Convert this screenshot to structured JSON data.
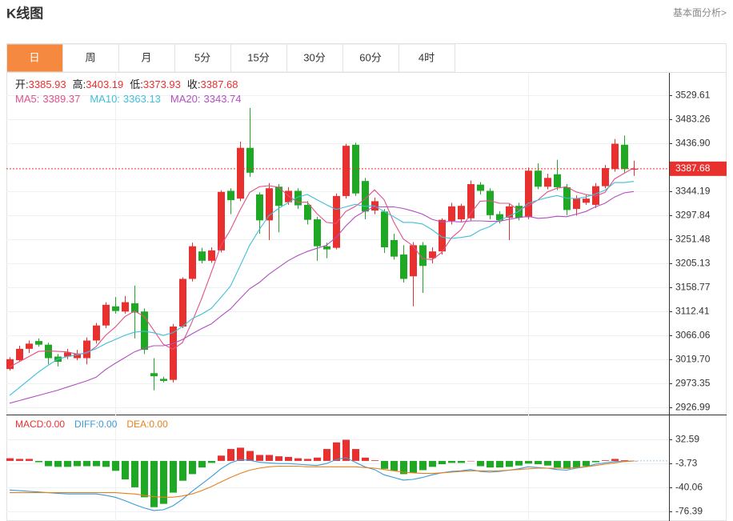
{
  "header": {
    "title": "K线图",
    "link": "基本面分析>"
  },
  "tabs": [
    "日",
    "周",
    "月",
    "5分",
    "15分",
    "30分",
    "60分",
    "4时"
  ],
  "active_tab": 0,
  "chart_data": [
    {
      "type": "candlestick",
      "up_color": "#e8302f",
      "down_color": "#1fa823",
      "grid": true,
      "ylim": [
        2917.7,
        3571.3
      ],
      "yticks": [
        3529.61,
        3483.26,
        {
          "value": 3436.9,
          "label": "3436.90"
        },
        3344.19,
        3297.84,
        3251.48,
        3205.13,
        3158.77,
        3112.41,
        3066.06,
        {
          "value": 3019.7,
          "label": "3019.70"
        },
        2973.35,
        2926.99
      ],
      "ohlc_labels": [
        "开:",
        "高:",
        "低:",
        "收:"
      ],
      "open": [
        3001,
        3018,
        3040,
        3055,
        3048,
        3025,
        3025,
        3022,
        3022,
        3056,
        3085,
        3122,
        3112,
        3128,
        3112,
        2993,
        2982,
        2980,
        3083,
        3175,
        3228,
        3210,
        3230,
        3345,
        3330,
        3428,
        3338,
        3288,
        3353,
        3323,
        3345,
        3318,
        3290,
        3238,
        3235,
        3335,
        3434,
        3364,
        3307,
        3305,
        3250,
        3222,
        3180,
        3240,
        3215,
        3228,
        3287,
        3290,
        3292,
        3357,
        3345,
        3300,
        3293,
        3316,
        3294,
        3384,
        3353,
        3377,
        3352,
        3310,
        3322,
        3318,
        3354,
        3387,
        3434,
        3385.93
      ],
      "high": [
        3024,
        3046,
        3056,
        3060,
        3052,
        3030,
        3040,
        3038,
        3062,
        3090,
        3130,
        3140,
        3142,
        3162,
        3118,
        3022,
        2986,
        3088,
        3178,
        3245,
        3235,
        3236,
        3346,
        3350,
        3440,
        3505,
        3342,
        3360,
        3358,
        3352,
        3350,
        3325,
        3295,
        3245,
        3340,
        3436,
        3438,
        3370,
        3332,
        3310,
        3262,
        3240,
        3246,
        3246,
        3236,
        3292,
        3322,
        3320,
        3365,
        3362,
        3350,
        3306,
        3320,
        3322,
        3390,
        3398,
        3378,
        3405,
        3358,
        3336,
        3338,
        3360,
        3395,
        3445,
        3452,
        3403.19
      ],
      "low": [
        2998,
        3015,
        3032,
        3044,
        3010,
        3006,
        3020,
        3018,
        3010,
        3050,
        3080,
        3108,
        3108,
        3060,
        3030,
        2960,
        2975,
        2975,
        3080,
        3170,
        3205,
        3206,
        3226,
        3300,
        3325,
        3372,
        3262,
        3250,
        3265,
        3318,
        3310,
        3280,
        3210,
        3215,
        3232,
        3330,
        3335,
        3290,
        3300,
        3225,
        3212,
        3168,
        3122,
        3148,
        3205,
        3222,
        3280,
        3285,
        3288,
        3338,
        3290,
        3282,
        3250,
        3288,
        3290,
        3348,
        3348,
        3346,
        3298,
        3297,
        3318,
        3312,
        3350,
        3382,
        3380,
        3373.93
      ],
      "close": [
        3020,
        3040,
        3050,
        3048,
        3022,
        3015,
        3033,
        3030,
        3056,
        3085,
        3125,
        3113,
        3130,
        3110,
        3038,
        2987,
        2978,
        3083,
        3175,
        3238,
        3210,
        3230,
        3343,
        3327,
        3428,
        3380,
        3288,
        3350,
        3316,
        3345,
        3317,
        3289,
        3238,
        3232,
        3335,
        3432,
        3340,
        3305,
        3325,
        3236,
        3218,
        3175,
        3240,
        3200,
        3228,
        3289,
        3315,
        3316,
        3358,
        3345,
        3298,
        3288,
        3315,
        3293,
        3384,
        3353,
        3370,
        3352,
        3308,
        3330,
        3330,
        3354,
        3389,
        3436,
        3387,
        3387.68
      ],
      "ma": [
        {
          "name": "MA5:",
          "color": "#e2508a",
          "values": [
            3005,
            3015,
            3025,
            3035,
            3036,
            3035,
            3034,
            3030,
            3031,
            3044,
            3066,
            3082,
            3102,
            3113,
            3103,
            3076,
            3049,
            3039,
            3052,
            3092,
            3137,
            3187,
            3239,
            3270,
            3308,
            3342,
            3353,
            3355,
            3352,
            3336,
            3323,
            3323,
            3301,
            3284,
            3282,
            3305,
            3315,
            3329,
            3347,
            3328,
            3285,
            3252,
            3239,
            3214,
            3212,
            3226,
            3254,
            3270,
            3301,
            3325,
            3326,
            3321,
            3321,
            3308,
            3316,
            3327,
            3343,
            3350,
            3353,
            3343,
            3338,
            3335,
            3342,
            3368,
            3379,
            3389.37
          ]
        },
        {
          "name": "MA10:",
          "color": "#3ebfd9",
          "values": [
            2950,
            2965,
            2980,
            2995,
            3008,
            3020,
            3025,
            3028,
            3033,
            3040,
            3050,
            3058,
            3066,
            3072,
            3074,
            3071,
            3066,
            3071,
            3083,
            3098,
            3107,
            3118,
            3139,
            3161,
            3200,
            3240,
            3270,
            3297,
            3311,
            3322,
            3333,
            3338,
            3328,
            3318,
            3309,
            3314,
            3319,
            3315,
            3316,
            3305,
            3295,
            3284,
            3284,
            3281,
            3270,
            3256,
            3253,
            3255,
            3258,
            3269,
            3276,
            3288,
            3296,
            3305,
            3321,
            3327,
            3332,
            3336,
            3331,
            3330,
            3333,
            3339,
            3346,
            3361,
            3361,
            3363.13
          ]
        },
        {
          "name": "MA20:",
          "color": "#b24fc0",
          "values": [
            2935,
            2940,
            2945,
            2950,
            2955,
            2960,
            2966,
            2972,
            2978,
            2985,
            3000,
            3012,
            3023,
            3034,
            3041,
            3046,
            3046,
            3050,
            3058,
            3069,
            3079,
            3088,
            3103,
            3117,
            3137,
            3156,
            3168,
            3184,
            3197,
            3210,
            3220,
            3228,
            3234,
            3240,
            3255,
            3277,
            3295,
            3306,
            3314,
            3314,
            3314,
            3311,
            3306,
            3300,
            3290,
            3285,
            3286,
            3285,
            3287,
            3287,
            3286,
            3286,
            3290,
            3293,
            3296,
            3292,
            3293,
            3296,
            3295,
            3300,
            3305,
            3314,
            3321,
            3333,
            3341,
            3343.74
          ]
        }
      ]
    },
    {
      "type": "macd",
      "grid": true,
      "ylim": [
        -89.7,
        67.7
      ],
      "yticks": [
        32.59,
        -3.73,
        -40.06,
        -76.39
      ],
      "bars": {
        "name": "MACD:",
        "up_color": "#e8302f",
        "down_color": "#1fa823",
        "values": [
          4,
          3,
          3,
          -2,
          -8,
          -9,
          -9,
          -8,
          -8,
          -8,
          -9,
          -15,
          -28,
          -40,
          -55,
          -70,
          -65,
          -48,
          -30,
          -20,
          -10,
          -3,
          8,
          18,
          20,
          15,
          9,
          9,
          7,
          6,
          4,
          3,
          5,
          18,
          28,
          32,
          18,
          5,
          1,
          -12,
          -15,
          -20,
          -18,
          -14,
          -9,
          -5,
          -3,
          -3,
          0,
          -8,
          -10,
          -10,
          -9,
          -7,
          -4,
          -5,
          -7,
          -10,
          -12,
          -10,
          -8,
          -2,
          1,
          3,
          1,
          0
        ]
      },
      "series": [
        {
          "name": "DIFF:",
          "color": "#3a9ad9",
          "values": [
            -44,
            -45,
            -46,
            -47,
            -48,
            -49,
            -50,
            -50,
            -50,
            -50,
            -52,
            -55,
            -60,
            -66,
            -71,
            -75,
            -74,
            -68,
            -58,
            -46,
            -35,
            -24,
            -12,
            -3,
            2,
            1,
            -2,
            -3,
            -4,
            -4,
            -5,
            -6,
            -7,
            -4,
            2,
            5,
            -2,
            -9,
            -13,
            -21,
            -25,
            -29,
            -28,
            -25,
            -21,
            -18,
            -16,
            -15,
            -13,
            -16,
            -17,
            -16,
            -14,
            -12,
            -9,
            -10,
            -11,
            -13,
            -14,
            -11,
            -9,
            -5,
            -3,
            -1,
            -1,
            0
          ]
        },
        {
          "name": "DEA:",
          "color": "#e8801a",
          "values": [
            -48,
            -48,
            -48,
            -48,
            -48,
            -48,
            -48,
            -48,
            -48,
            -48,
            -48,
            -48,
            -49,
            -50,
            -52,
            -54,
            -55,
            -55,
            -53,
            -50,
            -45,
            -39,
            -32,
            -25,
            -19,
            -14,
            -11,
            -9,
            -8,
            -8,
            -8,
            -9,
            -9,
            -9,
            -9,
            -9,
            -9,
            -10,
            -11,
            -13,
            -15,
            -17,
            -18,
            -19,
            -19,
            -18,
            -17,
            -16,
            -15,
            -15,
            -15,
            -15,
            -14,
            -13,
            -12,
            -11,
            -11,
            -11,
            -11,
            -10,
            -9,
            -7,
            -5,
            -3,
            -1,
            0
          ]
        }
      ],
      "legend": {
        "values": [
          0,
          0,
          0
        ],
        "value_labels": [
          "0.00",
          "0.00",
          "0.00"
        ]
      }
    }
  ]
}
